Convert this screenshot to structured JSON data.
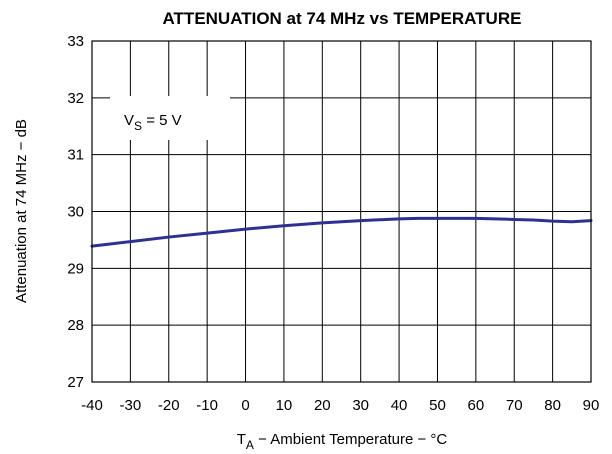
{
  "chart_data": {
    "type": "line",
    "title": "ATTENUATION at 74 MHz vs TEMPERATURE",
    "xlabel": {
      "main": "T",
      "sub": "A",
      "rest": " − Ambient Temperature − °C"
    },
    "ylabel": "Attenuation at 74 MHz − dB",
    "xlim": [
      -40,
      90
    ],
    "ylim": [
      27,
      33
    ],
    "x_ticks": [
      -40,
      -30,
      -20,
      -10,
      0,
      10,
      20,
      30,
      40,
      50,
      60,
      70,
      80,
      90
    ],
    "y_ticks": [
      27,
      28,
      29,
      30,
      31,
      32,
      33
    ],
    "grid": true,
    "annotation": {
      "main": "V",
      "sub": "S",
      "rest": " = 5 V"
    },
    "series": [
      {
        "color": "#2e3192",
        "x": [
          -40,
          -35,
          -30,
          -20,
          -10,
          0,
          10,
          20,
          30,
          40,
          45,
          50,
          60,
          65,
          70,
          75,
          80,
          85,
          90
        ],
        "y": [
          29.39,
          29.43,
          29.47,
          29.55,
          29.62,
          29.69,
          29.75,
          29.8,
          29.84,
          29.87,
          29.88,
          29.88,
          29.88,
          29.87,
          29.86,
          29.85,
          29.83,
          29.82,
          29.84
        ]
      }
    ]
  }
}
